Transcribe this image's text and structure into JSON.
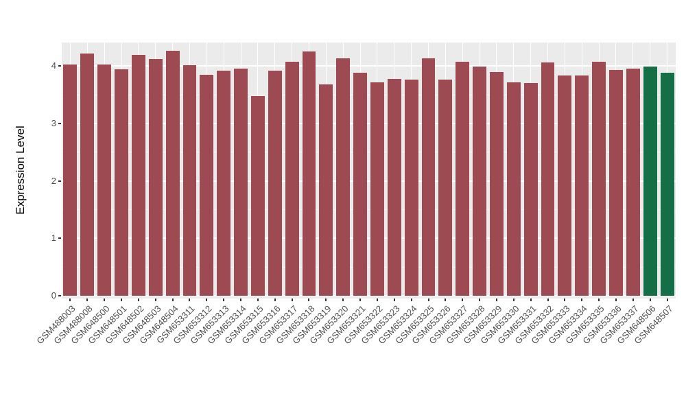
{
  "chart_data": {
    "type": "bar",
    "title": "",
    "xlabel": "",
    "ylabel": "Expression Level",
    "ylim": [
      0,
      4.41
    ],
    "yticks": [
      0,
      1,
      2,
      3,
      4
    ],
    "yticks_minor": [
      0.5,
      1.5,
      2.5,
      3.5
    ],
    "grid": "on",
    "legend": "none",
    "panel_background": "#ebebeb",
    "gridline_color": "#ffffff",
    "bar_color": "#9e4a52",
    "highlight_color": "#156f46",
    "highlight_indices": [
      34,
      35
    ],
    "categories": [
      "GSM488003",
      "GSM488008",
      "GSM648500",
      "GSM648501",
      "GSM648502",
      "GSM648503",
      "GSM648504",
      "GSM653311",
      "GSM653312",
      "GSM653313",
      "GSM653314",
      "GSM653315",
      "GSM653316",
      "GSM653317",
      "GSM653318",
      "GSM653319",
      "GSM653320",
      "GSM653321",
      "GSM653322",
      "GSM653323",
      "GSM653324",
      "GSM653325",
      "GSM653326",
      "GSM653327",
      "GSM653328",
      "GSM653329",
      "GSM653330",
      "GSM653331",
      "GSM653332",
      "GSM653333",
      "GSM653334",
      "GSM653335",
      "GSM653336",
      "GSM653337",
      "GSM648506",
      "GSM648507"
    ],
    "values": [
      4.03,
      4.22,
      4.03,
      3.95,
      4.2,
      4.12,
      4.27,
      4.01,
      3.85,
      3.92,
      3.96,
      3.48,
      3.92,
      4.07,
      4.25,
      3.68,
      4.13,
      3.88,
      3.72,
      3.78,
      3.76,
      4.14,
      3.76,
      4.08,
      3.99,
      3.9,
      3.72,
      3.7,
      4.06,
      3.84,
      3.84,
      4.07,
      3.93,
      3.96,
      3.99,
      3.89
    ]
  }
}
